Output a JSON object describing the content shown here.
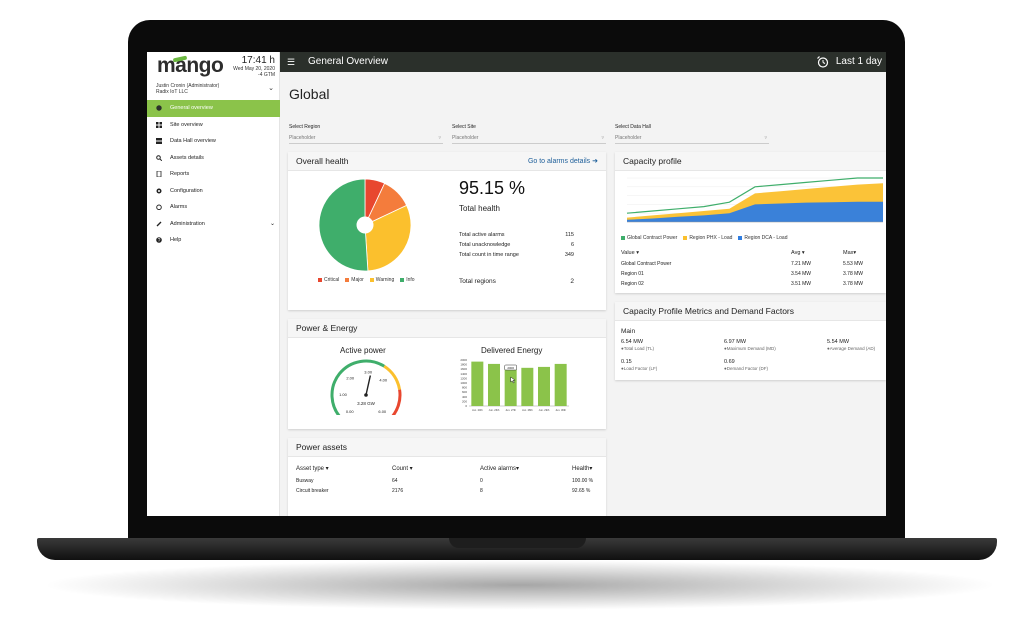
{
  "app": {
    "logo": "mango",
    "title": "General Overview",
    "range": "Last 1 day"
  },
  "clock": {
    "time": "17:41 h",
    "date": "Wed May 20, 2020",
    "tz": "-4 GTM"
  },
  "user": {
    "name": "Justin Cronin (Administrator)",
    "org": "Radix IoT LLC"
  },
  "nav": [
    {
      "label": "General overview",
      "icon": "globe-icon"
    },
    {
      "label": "Site overview",
      "icon": "grid-icon"
    },
    {
      "label": "Data Hall overview",
      "icon": "server-icon"
    },
    {
      "label": "Assets details",
      "icon": "search-icon"
    },
    {
      "label": "Reports",
      "icon": "document-icon"
    },
    {
      "label": "Configuration",
      "icon": "gear-icon"
    },
    {
      "label": "Alarms",
      "icon": "alarm-icon"
    },
    {
      "label": "Administration",
      "icon": "wrench-icon"
    },
    {
      "label": "Help",
      "icon": "help-icon"
    }
  ],
  "page": {
    "title": "Global"
  },
  "filters": [
    {
      "label": "Select Region",
      "placeholder": "Placeholder"
    },
    {
      "label": "Select Site",
      "placeholder": "Placeholder"
    },
    {
      "label": "Select Data Hall",
      "placeholder": "Placeholder"
    }
  ],
  "health": {
    "title": "Overall health",
    "link": "Go to alarms details",
    "value": "95.15 %",
    "value_label": "Total health",
    "rows": [
      {
        "label": "Total active alarms",
        "value": "115"
      },
      {
        "label": "Total unacknowledge",
        "value": "6"
      },
      {
        "label": "Total count in time range",
        "value": "349"
      }
    ],
    "regions_label": "Total regions",
    "regions_value": "2",
    "legend": [
      "Critical",
      "Major",
      "Warning",
      "Info"
    ]
  },
  "chart_data": [
    {
      "type": "pie",
      "categories": [
        "Critical",
        "Major",
        "Warning",
        "Info"
      ],
      "values": [
        7,
        11,
        31,
        51
      ],
      "colors": [
        "#e8472f",
        "#f47c3c",
        "#fbc02d",
        "#3fae6b"
      ]
    },
    {
      "type": "bar",
      "title": "Delivered Energy",
      "categories": [
        "Jun. 20th",
        "Jun. 26th",
        "Jun. 27th",
        "Jun. 28th",
        "Jun. 29th",
        "Jun. 30th"
      ],
      "values": [
        1930,
        1830,
        1700,
        1660,
        1700,
        1830
      ],
      "ylim": [
        0,
        2000
      ],
      "yticks": [
        "2000",
        "1800",
        "1600",
        "1400",
        "1200",
        "1000",
        "800",
        "600",
        "400",
        "200",
        "0"
      ],
      "color": "#8bc34a"
    },
    {
      "type": "area",
      "title": "Capacity profile",
      "x": [
        0,
        1,
        2,
        3,
        4,
        5,
        6,
        7,
        8,
        9,
        10
      ],
      "series": [
        {
          "name": "Global Contract Power",
          "values": [
            0.2,
            0.25,
            0.3,
            0.35,
            0.45,
            0.8,
            0.85,
            0.9,
            0.95,
            1.0,
            1.0
          ],
          "color": "#3fae6b"
        },
        {
          "name": "Region PHX - Load",
          "values": [
            0.1,
            0.15,
            0.2,
            0.25,
            0.3,
            0.65,
            0.7,
            0.75,
            0.8,
            0.85,
            0.88
          ],
          "color": "#fbc02d"
        },
        {
          "name": "Region DCA - Load",
          "values": [
            0.05,
            0.08,
            0.12,
            0.15,
            0.2,
            0.4,
            0.42,
            0.44,
            0.45,
            0.46,
            0.46
          ],
          "color": "#2f7de1"
        }
      ]
    },
    {
      "type": "gauge",
      "title": "Active power",
      "value": 3.28,
      "value_label": "3.28 GW",
      "ticks": [
        "0.00",
        "1.00",
        "2.00",
        "3.00",
        "4.00",
        "6.00"
      ],
      "max": 6
    }
  ],
  "power": {
    "title": "Power & Energy",
    "active": "Active power",
    "delivered": "Delivered Energy",
    "tooltip": "2000"
  },
  "assets": {
    "title": "Power assets",
    "headers": [
      "Asset type",
      "Count",
      "Active alarms",
      "Health"
    ],
    "rows": [
      [
        "Busway",
        "64",
        "0",
        "100.00 %"
      ],
      [
        "Circuit breaker",
        "2176",
        "8",
        "92.65 %"
      ]
    ]
  },
  "capacity": {
    "title": "Capacity profile",
    "headers": [
      "Value",
      "Avg",
      "Max"
    ],
    "rows": [
      [
        "Global Contract Power",
        "7.21 MW",
        "5.53 MW"
      ],
      [
        "Region 01",
        "3.54 MW",
        "3.78 MW"
      ],
      [
        "Region 02",
        "3.51 MW",
        "3.78 MW"
      ]
    ]
  },
  "metrics": {
    "title": "Capacity Profile Metrics and Demand Factors",
    "section": "Main",
    "items": [
      {
        "value": "6.54 MW",
        "label": "Total Load (TL)"
      },
      {
        "value": "6.97 MW",
        "label": "Maximum Demand (MD)"
      },
      {
        "value": "5.54 MW",
        "label": "Average Demand (AD)"
      },
      {
        "value": "0.15",
        "label": "Load Factor (LF)"
      },
      {
        "value": "0.69",
        "label": "Demand Factor (DF)"
      }
    ]
  }
}
